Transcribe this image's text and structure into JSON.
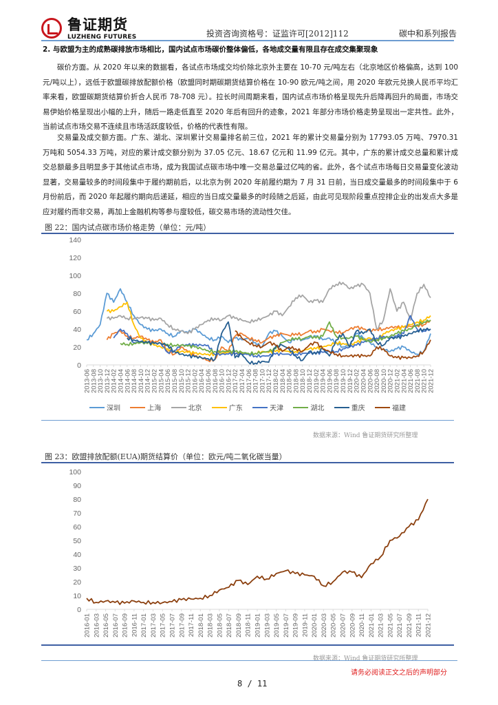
{
  "header": {
    "logo_cn": "鲁证期货",
    "logo_en": "LUZHENG FUTURES",
    "license": "投资咨询资格号：证监许可[2012]112",
    "series": "碳中和系列报告"
  },
  "section": {
    "title": "2. 与欧盟为主的成熟碳排放市场相比，国内试点市场碳价整体偏低，各地成交量有限且存在成交集聚现象"
  },
  "paragraphs": [
    "碳价方面。从 2020 年以来的数据看，各试点市场成交均价除北京外主要在 10-70 元/吨左右（北京地区价格偏高，达到 100 元/吨以上），远低于欧盟碳排放配额价格（欧盟同时期碳期货结算价格在 10-90 欧元/吨之间，用 2020 年欧元兑换人民币平均汇率来看，欧盟碳期货结算价折合人民币 78-708 元）。拉长时间周期来看，国内试点市场价格呈现先升后降再回升的局面，市场交易伊始价格呈现出小幅的上升，随后一路走低直至 2020 年后有回升的迹象，2021 年部分市场价格走势呈现出一定共性。此外，当前试点市场交易不连续且市场活跃度较低，价格的代表性有限。",
    "交易量及成交额方面。广东、湖北、深圳累计交易量排名前三位，2021 年的累计交易量分别为 17793.05 万吨、7970.31 万吨和 5054.33 万吨，对应的累计成交额分别为 37.05 亿元、18.67 亿元和 11.99 亿元。其中，广东的累计成交总量和累计成交总额最多且明显多于其他试点市场，成为我国试点碳市场中唯一交易总量过亿吨的省。此外，各个试点市场每日交易量变化波动显著，交易量较多的时间段集中于履约期前后，以北京为例 2020 年前履约期为 7 月 31 日前，当日成交量最多的时间段集中于 6 月份前后，而 2020 年起履约期向后递延，相应的当日成交量最多的时段随之后延，由此可见现阶段重点控排企业的出发点大多是应对履约而非交易，再加上金融机构等参与度较低，碳交易市场的流动性欠佳。"
  ],
  "figure22": {
    "title": "图 22：国内试点碳市场价格走势（单位：元/吨）",
    "source": "数据来源：Wind 鲁证期货研究所整理"
  },
  "figure23": {
    "title": "图 23：欧盟排放配额(EUA)期货结算价（单位：欧元/吨二氧化碳当量）",
    "source": "数据来源：Wind 鲁证期货研究所整理"
  },
  "footer": {
    "disclaimer": "请务必阅读正文之后的声明部分",
    "page": "8 / 11"
  },
  "chart_data": [
    {
      "type": "line",
      "title": "图 22：国内试点碳市场价格走势（单位：元/吨）",
      "xlabel": "",
      "ylabel": "元/吨",
      "ylim": [
        0,
        140
      ],
      "yticks": [
        0,
        20,
        40,
        60,
        80,
        100,
        120,
        140
      ],
      "grid": false,
      "legend_position": "bottom",
      "x": [
        "2013-06",
        "2013-08",
        "2013-10",
        "2013-12",
        "2014-02",
        "2014-04",
        "2014-06",
        "2014-08",
        "2014-10",
        "2014-12",
        "2015-02",
        "2015-04",
        "2015-06",
        "2015-08",
        "2015-10",
        "2015-12",
        "2016-02",
        "2016-04",
        "2016-06",
        "2016-08",
        "2016-10",
        "2016-12",
        "2017-02",
        "2017-04",
        "2017-06",
        "2017-08",
        "2017-10",
        "2017-12",
        "2018-02",
        "2018-04",
        "2018-06",
        "2018-08",
        "2018-10",
        "2018-12",
        "2019-02",
        "2019-04",
        "2019-06",
        "2019-08",
        "2019-10",
        "2019-12",
        "2020-02",
        "2020-04",
        "2020-06",
        "2020-08",
        "2020-10",
        "2020-12",
        "2021-02",
        "2021-04",
        "2021-06",
        "2021-08",
        "2021-10",
        "2021-12"
      ],
      "series": [
        {
          "name": "深圳",
          "color": "#5b9bd5",
          "values": [
            28,
            35,
            45,
            80,
            70,
            85,
            70,
            55,
            45,
            40,
            38,
            40,
            35,
            32,
            38,
            36,
            40,
            35,
            30,
            28,
            32,
            25,
            30,
            28,
            30,
            25,
            20,
            35,
            38,
            32,
            25,
            30,
            28,
            30,
            32,
            28,
            30,
            25,
            20,
            22,
            35,
            30,
            25,
            20,
            18,
            15,
            18,
            20,
            15,
            12,
            15,
            35
          ]
        },
        {
          "name": "上海",
          "color": "#ed7d31",
          "values": [
            null,
            null,
            null,
            28,
            35,
            38,
            32,
            30,
            32,
            28,
            25,
            28,
            15,
            12,
            20,
            15,
            10,
            8,
            5,
            6,
            20,
            15,
            32,
            35,
            30,
            28,
            25,
            30,
            32,
            35,
            33,
            35,
            34,
            38,
            36,
            40,
            38,
            37,
            36,
            40,
            42,
            40,
            38,
            40,
            40,
            42,
            42,
            42,
            43,
            44,
            45,
            50
          ]
        },
        {
          "name": "北京",
          "color": "#a5a5a5",
          "values": [
            null,
            null,
            null,
            52,
            52,
            55,
            52,
            52,
            53,
            52,
            50,
            52,
            45,
            40,
            38,
            35,
            40,
            45,
            50,
            52,
            50,
            55,
            52,
            50,
            48,
            50,
            52,
            55,
            60,
            55,
            65,
            75,
            78,
            70,
            72,
            70,
            85,
            90,
            92,
            85,
            88,
            90,
            80,
            40,
            50,
            85,
            60,
            70,
            50,
            80,
            90,
            75
          ]
        },
        {
          "name": "广东",
          "color": "#ffc000",
          "values": [
            null,
            null,
            null,
            60,
            60,
            65,
            70,
            45,
            30,
            25,
            22,
            20,
            18,
            15,
            15,
            14,
            13,
            12,
            12,
            12,
            13,
            14,
            12,
            13,
            12,
            13,
            15,
            14,
            15,
            16,
            15,
            15,
            16,
            18,
            18,
            20,
            22,
            25,
            24,
            22,
            25,
            28,
            30,
            28,
            35,
            38,
            40,
            42,
            45,
            48,
            50,
            55
          ]
        },
        {
          "name": "天津",
          "color": "#4472c4",
          "values": [
            null,
            null,
            null,
            null,
            30,
            40,
            35,
            25,
            25,
            24,
            24,
            24,
            14,
            16,
            22,
            22,
            22,
            22,
            22,
            12,
            12,
            12,
            12,
            12,
            12,
            10,
            10,
            10,
            12,
            12,
            12,
            12,
            13,
            13,
            13,
            14,
            15,
            15,
            18,
            20,
            22,
            25,
            28,
            30,
            32,
            30,
            32,
            35,
            55,
            40,
            38,
            40
          ]
        },
        {
          "name": "湖北",
          "color": "#70ad47",
          "values": [
            null,
            null,
            null,
            null,
            null,
            24,
            23,
            24,
            25,
            24,
            24,
            24,
            23,
            22,
            22,
            21,
            20,
            18,
            16,
            15,
            15,
            15,
            15,
            14,
            13,
            13,
            14,
            15,
            18,
            25,
            28,
            30,
            29,
            32,
            30,
            32,
            48,
            32,
            30,
            30,
            32,
            28,
            26,
            28,
            30,
            32,
            35,
            38,
            40,
            45,
            48,
            50
          ]
        },
        {
          "name": "重庆",
          "color": "#255e91",
          "values": [
            null,
            null,
            null,
            null,
            null,
            null,
            30,
            28,
            26,
            25,
            24,
            24,
            22,
            15,
            12,
            10,
            9,
            8,
            7,
            6,
            35,
            48,
            8,
            12,
            3,
            2,
            4,
            3,
            20,
            22,
            18,
            10,
            5,
            15,
            12,
            18,
            10,
            28,
            35,
            20,
            38,
            35,
            40,
            25,
            22,
            30,
            30,
            32,
            35,
            38,
            40,
            40
          ]
        },
        {
          "name": "福建",
          "color": "#9e480e",
          "values": [
            null,
            null,
            null,
            null,
            null,
            null,
            null,
            null,
            null,
            null,
            null,
            null,
            null,
            null,
            null,
            null,
            null,
            null,
            null,
            null,
            null,
            null,
            38,
            30,
            25,
            22,
            20,
            25,
            22,
            15,
            20,
            18,
            15,
            22,
            25,
            18,
            15,
            12,
            10,
            10,
            10,
            10,
            10,
            20,
            18,
            10,
            8,
            8,
            8,
            10,
            15,
            28
          ]
        }
      ]
    },
    {
      "type": "line",
      "title": "图 23：欧盟排放配额(EUA)期货结算价（单位：欧元/吨二氧化碳当量）",
      "xlabel": "",
      "ylabel": "欧元/吨二氧化碳当量",
      "ylim": [
        0,
        100
      ],
      "yticks": [
        0,
        10,
        20,
        30,
        40,
        50,
        60,
        70,
        80,
        90,
        100
      ],
      "grid": false,
      "legend_position": "none",
      "x": [
        "2016-01",
        "2016-03",
        "2016-05",
        "2016-07",
        "2016-09",
        "2016-11",
        "2017-01",
        "2017-03",
        "2017-05",
        "2017-07",
        "2017-09",
        "2017-11",
        "2018-01",
        "2018-03",
        "2018-05",
        "2018-07",
        "2018-09",
        "2018-11",
        "2019-01",
        "2019-03",
        "2019-05",
        "2019-07",
        "2019-09",
        "2019-11",
        "2020-01",
        "2020-03",
        "2020-05",
        "2020-07",
        "2020-09",
        "2020-11",
        "2021-01",
        "2021-03",
        "2021-05",
        "2021-07",
        "2021-09",
        "2021-11",
        "2021-12"
      ],
      "series": [
        {
          "name": "EUA期货结算价",
          "color": "#8b3f0e",
          "values": [
            8,
            5,
            6,
            5,
            4.5,
            6,
            5,
            5,
            4.8,
            5.5,
            7,
            7.5,
            8,
            10,
            14,
            16,
            21,
            18,
            24,
            22,
            26,
            28,
            26,
            25,
            24,
            17,
            20,
            27,
            27,
            23,
            33,
            38,
            50,
            53,
            60,
            65,
            80
          ]
        }
      ]
    }
  ]
}
